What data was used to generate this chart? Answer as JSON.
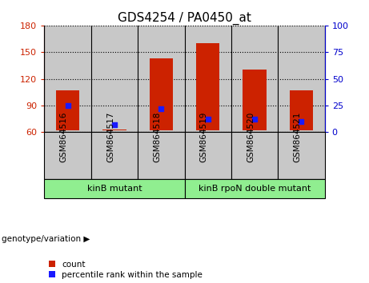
{
  "title": "GDS4254 / PA0450_at",
  "categories": [
    "GSM864516",
    "GSM864517",
    "GSM864518",
    "GSM864519",
    "GSM864520",
    "GSM864521"
  ],
  "count_values": [
    107,
    63,
    143,
    160,
    130,
    107
  ],
  "count_base": 62,
  "percentile_values": [
    25,
    7,
    22,
    12,
    12,
    10
  ],
  "ylim_left": [
    60,
    180
  ],
  "ylim_right": [
    0,
    100
  ],
  "yticks_left": [
    60,
    90,
    120,
    150,
    180
  ],
  "yticks_right": [
    0,
    25,
    50,
    75,
    100
  ],
  "groups": [
    {
      "label": "kinB mutant",
      "indices": [
        0,
        1,
        2
      ],
      "color": "#90ee90"
    },
    {
      "label": "kinB rpoN double mutant",
      "indices": [
        3,
        4,
        5
      ],
      "color": "#90ee90"
    }
  ],
  "group_label_prefix": "genotype/variation ▶",
  "bar_color": "#cc2200",
  "dot_color": "#1a1aff",
  "bar_width": 0.5,
  "ax_bg": "#c8c8c8",
  "label_bg": "#c8c8c8",
  "left_tick_color": "#cc2200",
  "right_tick_color": "#0000cc",
  "legend_items": [
    {
      "label": "count",
      "color": "#cc2200"
    },
    {
      "label": "percentile rank within the sample",
      "color": "#1a1aff"
    }
  ],
  "fig_bg": "#ffffff"
}
